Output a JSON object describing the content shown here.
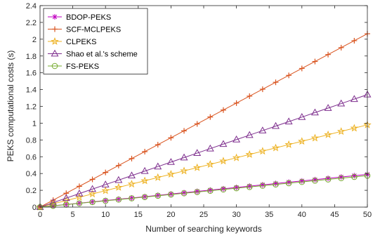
{
  "chart_data": {
    "type": "line",
    "title": "",
    "xlabel": "Number of searching keywords",
    "ylabel": "PEKS computational costs (s)",
    "xlim": [
      0,
      50
    ],
    "ylim": [
      0,
      2.4
    ],
    "xticks": [
      0,
      5,
      10,
      15,
      20,
      25,
      30,
      35,
      40,
      45,
      50
    ],
    "yticks": [
      0,
      0.2,
      0.4,
      0.6,
      0.8,
      1,
      1.2,
      1.4,
      1.6,
      1.8,
      2,
      2.2,
      2.4
    ],
    "grid": false,
    "legend_position": "top-left",
    "x": [
      0,
      2,
      4,
      6,
      8,
      10,
      12,
      14,
      16,
      18,
      20,
      22,
      24,
      26,
      28,
      30,
      32,
      34,
      36,
      38,
      40,
      42,
      44,
      46,
      48,
      50
    ],
    "series": [
      {
        "name": "BDOP-PEKS",
        "color": "#c000c0",
        "marker": "asterisk",
        "slope": 0.0078
      },
      {
        "name": "SCF-MCLPEKS",
        "color": "#d9531e",
        "marker": "plus",
        "slope": 0.0413
      },
      {
        "name": "CLPEKS",
        "color": "#edb120",
        "marker": "star",
        "slope": 0.0196
      },
      {
        "name": "Shao et al.'s scheme",
        "color": "#7e2f8e",
        "marker": "triangle",
        "slope": 0.0268
      },
      {
        "name": "FS-PEKS",
        "color": "#77ac30",
        "marker": "circle",
        "slope": 0.0075
      }
    ]
  }
}
